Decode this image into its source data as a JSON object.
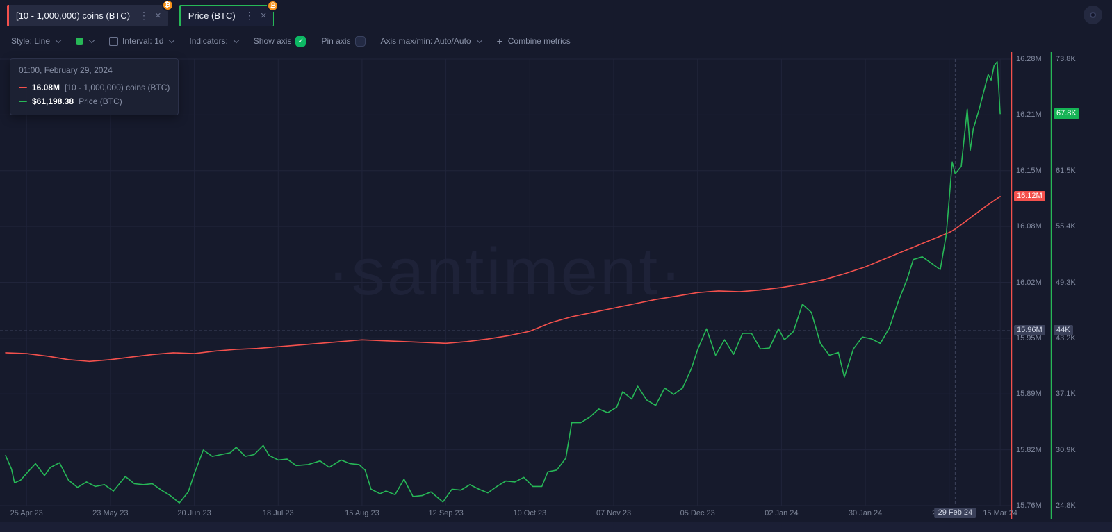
{
  "header": {
    "tabs": [
      {
        "label": "[10 - 1,000,000) coins (BTC)",
        "color": "#f4514d",
        "badge": "₿"
      },
      {
        "label": "Price (BTC)",
        "color": "#27b857",
        "badge": "₿"
      }
    ],
    "kebab": "⋮",
    "close": "×"
  },
  "toolbar": {
    "style_label": "Style: Line",
    "swatch_color": "#27b857",
    "interval_label": "Interval: 1d",
    "indicators_label": "Indicators:",
    "show_axis_label": "Show axis",
    "show_axis_checked": true,
    "pin_axis_label": "Pin axis",
    "pin_axis_checked": false,
    "axis_maxmin_label": "Axis max/min: Auto/Auto",
    "combine_plus": "+",
    "combine_label": "Combine metrics",
    "checkmark": "✓"
  },
  "tooltip": {
    "title": "01:00, February 29, 2024",
    "rows": [
      {
        "value": "16.08M",
        "name": "[10 - 1,000,000) coins (BTC)",
        "color": "#f4514d"
      },
      {
        "value": "$61,198.38",
        "name": "Price (BTC)",
        "color": "#27b857"
      }
    ]
  },
  "watermark": "·santiment·",
  "chart_data": {
    "type": "line",
    "x_range": [
      "2023-04-18",
      "2024-03-18"
    ],
    "x_ticks": [
      {
        "date": "2023-04-25",
        "label": "25 Apr 23"
      },
      {
        "date": "2023-05-23",
        "label": "23 May 23"
      },
      {
        "date": "2023-06-20",
        "label": "20 Jun 23"
      },
      {
        "date": "2023-07-18",
        "label": "18 Jul 23"
      },
      {
        "date": "2023-08-15",
        "label": "15 Aug 23"
      },
      {
        "date": "2023-09-12",
        "label": "12 Sep 23"
      },
      {
        "date": "2023-10-10",
        "label": "10 Oct 23"
      },
      {
        "date": "2023-11-07",
        "label": "07 Nov 23"
      },
      {
        "date": "2023-12-05",
        "label": "05 Dec 23"
      },
      {
        "date": "2024-01-02",
        "label": "02 Jan 24"
      },
      {
        "date": "2024-01-30",
        "label": "30 Jan 24"
      },
      {
        "date": "2024-02-27",
        "label": "27 Feb 24"
      },
      {
        "date": "2024-03-15",
        "label": "15 Mar 24"
      }
    ],
    "axes": {
      "red": {
        "labels": [
          "16.28M",
          "16.21M",
          "16.15M",
          "16.08M",
          "16.02M",
          "15.95M",
          "15.89M",
          "15.82M",
          "15.76M"
        ],
        "max": 16.28,
        "min": 15.76,
        "color": "#f4514d"
      },
      "green": {
        "labels": [
          "73.8K",
          "67.8K",
          "61.5K",
          "55.4K",
          "49.3K",
          "43.2K",
          "37.1K",
          "30.9K",
          "24.8K"
        ],
        "max": 73.8,
        "min": 24.8,
        "color": "#27b857"
      }
    },
    "series": [
      {
        "name": "[10 - 1,000,000) coins (BTC)",
        "axis": "red",
        "color": "#f4514d",
        "unit": "M coins",
        "points": [
          [
            "2023-04-18",
            15.938
          ],
          [
            "2023-04-25",
            15.937
          ],
          [
            "2023-05-02",
            15.934
          ],
          [
            "2023-05-09",
            15.93
          ],
          [
            "2023-05-16",
            15.928
          ],
          [
            "2023-05-23",
            15.93
          ],
          [
            "2023-05-30",
            15.933
          ],
          [
            "2023-06-06",
            15.936
          ],
          [
            "2023-06-13",
            15.938
          ],
          [
            "2023-06-20",
            15.937
          ],
          [
            "2023-06-27",
            15.94
          ],
          [
            "2023-07-04",
            15.942
          ],
          [
            "2023-07-11",
            15.943
          ],
          [
            "2023-07-18",
            15.945
          ],
          [
            "2023-07-25",
            15.947
          ],
          [
            "2023-08-01",
            15.949
          ],
          [
            "2023-08-08",
            15.951
          ],
          [
            "2023-08-15",
            15.953
          ],
          [
            "2023-08-22",
            15.952
          ],
          [
            "2023-08-29",
            15.951
          ],
          [
            "2023-09-05",
            15.95
          ],
          [
            "2023-09-12",
            15.949
          ],
          [
            "2023-09-19",
            15.951
          ],
          [
            "2023-09-26",
            15.954
          ],
          [
            "2023-10-03",
            15.958
          ],
          [
            "2023-10-10",
            15.963
          ],
          [
            "2023-10-17",
            15.973
          ],
          [
            "2023-10-24",
            15.98
          ],
          [
            "2023-10-31",
            15.985
          ],
          [
            "2023-11-07",
            15.99
          ],
          [
            "2023-11-14",
            15.995
          ],
          [
            "2023-11-21",
            16.0
          ],
          [
            "2023-11-28",
            16.004
          ],
          [
            "2023-12-05",
            16.008
          ],
          [
            "2023-12-12",
            16.01
          ],
          [
            "2023-12-19",
            16.009
          ],
          [
            "2023-12-26",
            16.011
          ],
          [
            "2024-01-02",
            16.014
          ],
          [
            "2024-01-09",
            16.018
          ],
          [
            "2024-01-16",
            16.023
          ],
          [
            "2024-01-23",
            16.03
          ],
          [
            "2024-01-30",
            16.038
          ],
          [
            "2024-02-06",
            16.048
          ],
          [
            "2024-02-13",
            16.058
          ],
          [
            "2024-02-20",
            16.068
          ],
          [
            "2024-02-27",
            16.078
          ],
          [
            "2024-02-29",
            16.082
          ],
          [
            "2024-03-05",
            16.095
          ],
          [
            "2024-03-10",
            16.108
          ],
          [
            "2024-03-15",
            16.12
          ]
        ]
      },
      {
        "name": "Price (BTC)",
        "axis": "green",
        "color": "#27b857",
        "unit": "K USD",
        "points": [
          [
            "2023-04-18",
            30.3
          ],
          [
            "2023-04-20",
            28.8
          ],
          [
            "2023-04-21",
            27.3
          ],
          [
            "2023-04-23",
            27.6
          ],
          [
            "2023-04-26",
            28.7
          ],
          [
            "2023-04-28",
            29.4
          ],
          [
            "2023-05-01",
            28.1
          ],
          [
            "2023-05-03",
            29.0
          ],
          [
            "2023-05-06",
            29.5
          ],
          [
            "2023-05-09",
            27.6
          ],
          [
            "2023-05-12",
            26.8
          ],
          [
            "2023-05-15",
            27.4
          ],
          [
            "2023-05-18",
            26.9
          ],
          [
            "2023-05-21",
            27.1
          ],
          [
            "2023-05-24",
            26.4
          ],
          [
            "2023-05-28",
            28.0
          ],
          [
            "2023-05-31",
            27.2
          ],
          [
            "2023-06-03",
            27.1
          ],
          [
            "2023-06-06",
            27.2
          ],
          [
            "2023-06-09",
            26.5
          ],
          [
            "2023-06-12",
            25.9
          ],
          [
            "2023-06-15",
            25.1
          ],
          [
            "2023-06-18",
            26.3
          ],
          [
            "2023-06-20",
            28.3
          ],
          [
            "2023-06-23",
            30.9
          ],
          [
            "2023-06-26",
            30.2
          ],
          [
            "2023-06-29",
            30.4
          ],
          [
            "2023-07-02",
            30.6
          ],
          [
            "2023-07-04",
            31.2
          ],
          [
            "2023-07-07",
            30.2
          ],
          [
            "2023-07-10",
            30.4
          ],
          [
            "2023-07-13",
            31.4
          ],
          [
            "2023-07-15",
            30.3
          ],
          [
            "2023-07-18",
            29.8
          ],
          [
            "2023-07-21",
            29.9
          ],
          [
            "2023-07-24",
            29.2
          ],
          [
            "2023-07-28",
            29.3
          ],
          [
            "2023-08-01",
            29.7
          ],
          [
            "2023-08-04",
            29.0
          ],
          [
            "2023-08-08",
            29.8
          ],
          [
            "2023-08-11",
            29.4
          ],
          [
            "2023-08-14",
            29.3
          ],
          [
            "2023-08-16",
            28.7
          ],
          [
            "2023-08-18",
            26.6
          ],
          [
            "2023-08-21",
            26.1
          ],
          [
            "2023-08-23",
            26.4
          ],
          [
            "2023-08-26",
            26.0
          ],
          [
            "2023-08-29",
            27.7
          ],
          [
            "2023-09-01",
            25.8
          ],
          [
            "2023-09-04",
            25.9
          ],
          [
            "2023-09-07",
            26.3
          ],
          [
            "2023-09-11",
            25.2
          ],
          [
            "2023-09-14",
            26.6
          ],
          [
            "2023-09-17",
            26.5
          ],
          [
            "2023-09-20",
            27.1
          ],
          [
            "2023-09-23",
            26.6
          ],
          [
            "2023-09-26",
            26.2
          ],
          [
            "2023-09-29",
            26.9
          ],
          [
            "2023-10-02",
            27.5
          ],
          [
            "2023-10-05",
            27.4
          ],
          [
            "2023-10-08",
            27.9
          ],
          [
            "2023-10-11",
            26.9
          ],
          [
            "2023-10-14",
            26.9
          ],
          [
            "2023-10-16",
            28.5
          ],
          [
            "2023-10-19",
            28.7
          ],
          [
            "2023-10-22",
            30.0
          ],
          [
            "2023-10-24",
            33.9
          ],
          [
            "2023-10-27",
            33.9
          ],
          [
            "2023-10-30",
            34.5
          ],
          [
            "2023-11-02",
            35.4
          ],
          [
            "2023-11-05",
            35.0
          ],
          [
            "2023-11-08",
            35.6
          ],
          [
            "2023-11-10",
            37.3
          ],
          [
            "2023-11-13",
            36.5
          ],
          [
            "2023-11-15",
            37.9
          ],
          [
            "2023-11-18",
            36.4
          ],
          [
            "2023-11-21",
            35.8
          ],
          [
            "2023-11-24",
            37.7
          ],
          [
            "2023-11-27",
            37.0
          ],
          [
            "2023-11-30",
            37.7
          ],
          [
            "2023-12-03",
            39.9
          ],
          [
            "2023-12-05",
            41.9
          ],
          [
            "2023-12-08",
            44.2
          ],
          [
            "2023-12-11",
            41.3
          ],
          [
            "2023-12-14",
            43.0
          ],
          [
            "2023-12-17",
            41.4
          ],
          [
            "2023-12-20",
            43.7
          ],
          [
            "2023-12-23",
            43.7
          ],
          [
            "2023-12-26",
            42.0
          ],
          [
            "2023-12-29",
            42.1
          ],
          [
            "2024-01-01",
            44.2
          ],
          [
            "2024-01-03",
            43.0
          ],
          [
            "2024-01-06",
            43.9
          ],
          [
            "2024-01-09",
            46.9
          ],
          [
            "2024-01-12",
            46.0
          ],
          [
            "2024-01-15",
            42.6
          ],
          [
            "2024-01-18",
            41.3
          ],
          [
            "2024-01-21",
            41.6
          ],
          [
            "2024-01-23",
            38.9
          ],
          [
            "2024-01-26",
            42.0
          ],
          [
            "2024-01-29",
            43.3
          ],
          [
            "2024-02-01",
            43.1
          ],
          [
            "2024-02-04",
            42.6
          ],
          [
            "2024-02-07",
            44.3
          ],
          [
            "2024-02-10",
            47.2
          ],
          [
            "2024-02-13",
            49.7
          ],
          [
            "2024-02-15",
            51.8
          ],
          [
            "2024-02-18",
            52.1
          ],
          [
            "2024-02-21",
            51.4
          ],
          [
            "2024-02-24",
            50.7
          ],
          [
            "2024-02-26",
            54.5
          ],
          [
            "2024-02-28",
            62.5
          ],
          [
            "2024-02-29",
            61.2
          ],
          [
            "2024-03-02",
            62.0
          ],
          [
            "2024-03-04",
            68.3
          ],
          [
            "2024-03-05",
            63.8
          ],
          [
            "2024-03-06",
            66.1
          ],
          [
            "2024-03-08",
            68.3
          ],
          [
            "2024-03-11",
            72.1
          ],
          [
            "2024-03-12",
            71.5
          ],
          [
            "2024-03-13",
            73.1
          ],
          [
            "2024-03-14",
            73.5
          ],
          [
            "2024-03-15",
            67.8
          ]
        ]
      }
    ],
    "last_values": {
      "red": {
        "label": "16.12M",
        "value": 16.12
      },
      "green": {
        "label": "67.8K",
        "value": 67.8
      }
    },
    "crosshair": {
      "date": "2024-02-29",
      "date_label": "29 Feb 24",
      "red_label": "15.96M",
      "green_label": "44K",
      "green_value": 44.0
    },
    "legend_position": "top-left-tooltip",
    "grid": true
  }
}
